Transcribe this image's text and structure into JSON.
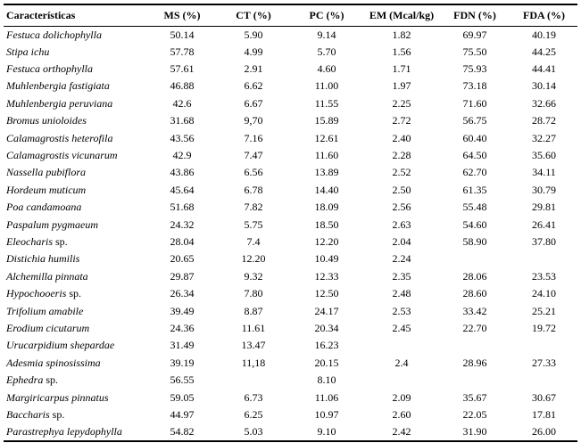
{
  "table": {
    "headers": [
      "Características",
      "MS (%)",
      "CT (%)",
      "PC (%)",
      "EM (Mcal/kg)",
      "FDN (%)",
      "FDA (%)"
    ],
    "rows": [
      {
        "name": "Festuca dolichophylla",
        "suffix": "",
        "values": [
          "50.14",
          "5.90",
          "9.14",
          "1.82",
          "69.97",
          "40.19"
        ]
      },
      {
        "name": "Stipa ichu",
        "suffix": "",
        "values": [
          "57.78",
          "4.99",
          "5.70",
          "1.56",
          "75.50",
          "44.25"
        ]
      },
      {
        "name": "Festuca orthophylla",
        "suffix": "",
        "values": [
          "57.61",
          "2.91",
          "4.60",
          "1.71",
          "75.93",
          "44.41"
        ]
      },
      {
        "name": "Muhlenbergia fastigiata",
        "suffix": "",
        "values": [
          "46.88",
          "6.62",
          "11.00",
          "1.97",
          "73.18",
          "30.14"
        ]
      },
      {
        "name": "Muhlenbergia peruviana",
        "suffix": "",
        "values": [
          "42.6",
          "6.67",
          "11.55",
          "2.25",
          "71.60",
          "32.66"
        ]
      },
      {
        "name": "Bromus unioloides",
        "suffix": "",
        "values": [
          "31.68",
          "9,70",
          "15.89",
          "2.72",
          "56.75",
          "28.72"
        ]
      },
      {
        "name": "Calamagrostis heterofila",
        "suffix": "",
        "values": [
          "43.56",
          "7.16",
          "12.61",
          "2.40",
          "60.40",
          "32.27"
        ]
      },
      {
        "name": "Calamagrostis vicunarum",
        "suffix": "",
        "values": [
          "42.9",
          "7.47",
          "11.60",
          "2.28",
          "64.50",
          "35.60"
        ]
      },
      {
        "name": "Nassella pubiflora",
        "suffix": "",
        "values": [
          "43.86",
          "6.56",
          "13.89",
          "2.52",
          "62.70",
          "34.11"
        ]
      },
      {
        "name": "Hordeum muticum",
        "suffix": "",
        "values": [
          "45.64",
          "6.78",
          "14.40",
          "2.50",
          "61.35",
          "30.79"
        ]
      },
      {
        "name": "Poa candamoana",
        "suffix": "",
        "values": [
          "51.68",
          "7.82",
          "18.09",
          "2.56",
          "55.48",
          "29.81"
        ]
      },
      {
        "name": "Paspalum pygmaeum",
        "suffix": "",
        "values": [
          "24.32",
          "5.75",
          "18.50",
          "2.63",
          "54.60",
          "26.41"
        ]
      },
      {
        "name": "Eleocharis",
        "suffix": " sp.",
        "values": [
          "28.04",
          "7.4",
          "12.20",
          "2.04",
          "58.90",
          "37.80"
        ]
      },
      {
        "name": "Distichia humilis",
        "suffix": "",
        "values": [
          "20.65",
          "12.20",
          "10.49",
          "2.24",
          "",
          ""
        ]
      },
      {
        "name": "Alchemilla pinnata",
        "suffix": "",
        "values": [
          "29.87",
          "9.32",
          "12.33",
          "2.35",
          "28.06",
          "23.53"
        ]
      },
      {
        "name": "Hypochooeris",
        "suffix": " sp.",
        "values": [
          "26.34",
          "7.80",
          "12.50",
          "2.48",
          "28.60",
          "24.10"
        ]
      },
      {
        "name": "Trifolium amabile",
        "suffix": "",
        "values": [
          "39.49",
          "8.87",
          "24.17",
          "2.53",
          "33.42",
          "25.21"
        ]
      },
      {
        "name": "Erodium cicutarum",
        "suffix": "",
        "values": [
          "24.36",
          "11.61",
          "20.34",
          "2.45",
          "22.70",
          "19.72"
        ]
      },
      {
        "name": "Urucarpidium shepardae",
        "suffix": "",
        "values": [
          "31.49",
          "13.47",
          "16.23",
          "",
          "",
          ""
        ]
      },
      {
        "name": "Adesmia spinosissima",
        "suffix": "",
        "values": [
          "39.19",
          "11,18",
          "20.15",
          "2.4",
          "28.96",
          "27.33"
        ]
      },
      {
        "name": "Ephedra",
        "suffix": " sp.",
        "values": [
          "56.55",
          "",
          "8.10",
          "",
          "",
          ""
        ]
      },
      {
        "name": "Margiricarpus pinnatus",
        "suffix": "",
        "values": [
          "59.05",
          "6.73",
          "11.06",
          "2.09",
          "35.67",
          "30.67"
        ]
      },
      {
        "name": "Baccharis",
        "suffix": " sp.",
        "values": [
          "44.97",
          "6.25",
          "10.97",
          "2.60",
          "22.05",
          "17.81"
        ]
      },
      {
        "name": "Parastrephya lepydophylla",
        "suffix": "",
        "values": [
          "54.82",
          "5.03",
          "9.10",
          "2.42",
          "31.90",
          "26.00"
        ]
      }
    ]
  }
}
